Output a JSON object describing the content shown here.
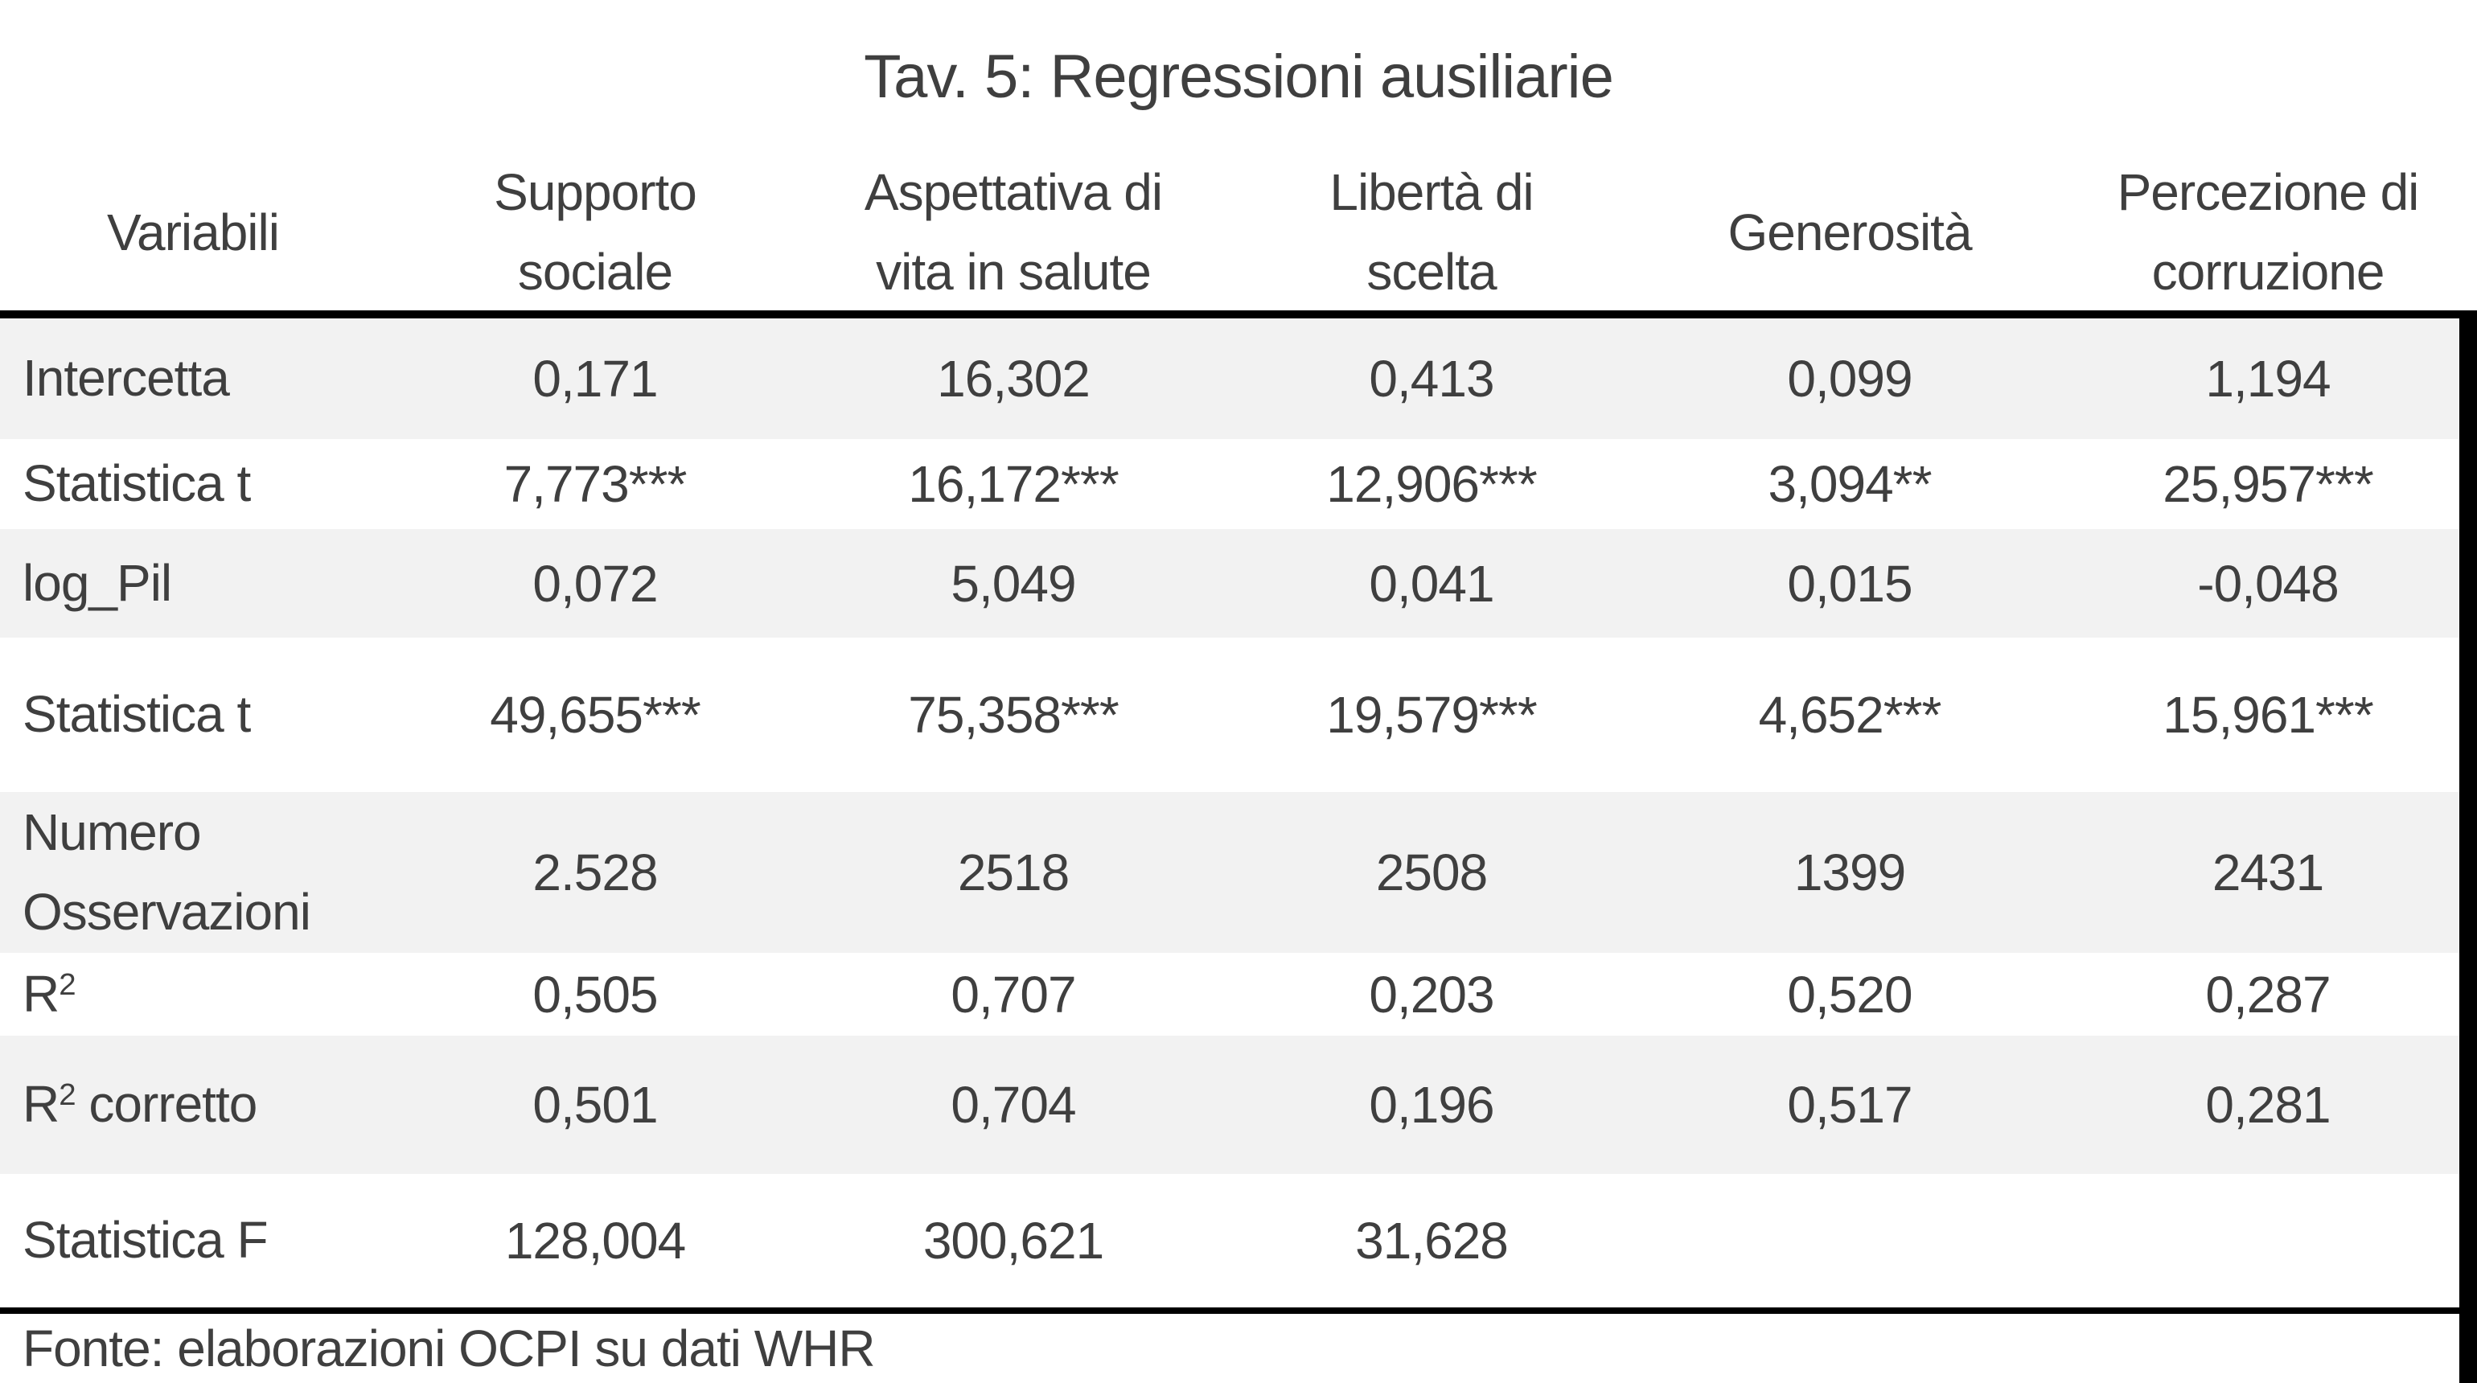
{
  "colors": {
    "text": "#3f3f3f",
    "shaded_row": "#f2f2f2",
    "rule": "#000000",
    "background": "#ffffff"
  },
  "chart_data": {
    "type": "table",
    "title": "Tav. 5: Regressioni ausiliarie",
    "row_header_label": "Variabili",
    "columns": [
      "Supporto\nsociale",
      "Aspettativa di\nvita in salute",
      "Libertà di\nscelta",
      "Generosità",
      "Percezione di\ncorruzione"
    ],
    "rows": [
      {
        "label": {
          "pre": "Intercetta",
          "sup": "",
          "post": ""
        },
        "shaded": true,
        "values": [
          "0,171",
          "16,302",
          "0,413",
          "0,099",
          "1,194"
        ]
      },
      {
        "label": {
          "pre": "Statistica t",
          "sup": "",
          "post": ""
        },
        "shaded": false,
        "values": [
          "7,773***",
          "16,172***",
          "12,906***",
          "3,094**",
          "25,957***"
        ]
      },
      {
        "label": {
          "pre": "log_Pil",
          "sup": "",
          "post": ""
        },
        "shaded": true,
        "values": [
          "0,072",
          "5,049",
          "0,041",
          "0,015",
          "-0,048"
        ]
      },
      {
        "label": {
          "pre": "Statistica t",
          "sup": "",
          "post": ""
        },
        "shaded": false,
        "values": [
          "49,655***",
          "75,358***",
          "19,579***",
          "4,652***",
          "15,961***"
        ]
      },
      {
        "label": {
          "pre": "Numero\nOsservazioni",
          "sup": "",
          "post": ""
        },
        "shaded": true,
        "values": [
          "2.528",
          "2518",
          "2508",
          "1399",
          "2431"
        ]
      },
      {
        "label": {
          "pre": "R",
          "sup": "2",
          "post": ""
        },
        "shaded": false,
        "values": [
          "0,505",
          "0,707",
          "0,203",
          "0,520",
          "0,287"
        ]
      },
      {
        "label": {
          "pre": "R",
          "sup": "2",
          "post": " corretto"
        },
        "shaded": true,
        "values": [
          "0,501",
          "0,704",
          "0,196",
          "0,517",
          "0,281"
        ]
      },
      {
        "label": {
          "pre": "Statistica F",
          "sup": "",
          "post": ""
        },
        "shaded": false,
        "values": [
          "128,004",
          "300,621",
          "31,628",
          "",
          ""
        ]
      }
    ],
    "source_note": "Fonte: elaborazioni OCPI su dati WHR"
  }
}
